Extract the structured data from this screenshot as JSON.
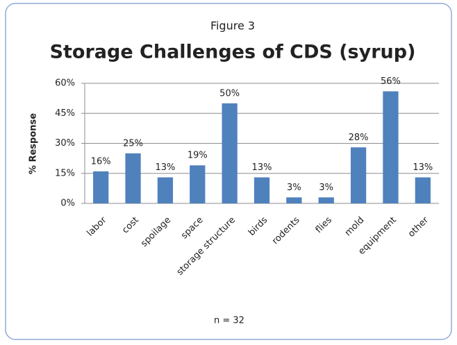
{
  "chart_data": {
    "type": "bar",
    "subtitle": "Figure 3",
    "title": "Storage Challenges of CDS (syrup)",
    "y_label": "% Response",
    "annotation": "n = 32",
    "categories": [
      "labor",
      "cost",
      "spoilage",
      "space",
      "storage structure",
      "birds",
      "rodents",
      "flies",
      "mold",
      "equipment",
      "other"
    ],
    "values": [
      16,
      25,
      13,
      19,
      50,
      13,
      3,
      3,
      28,
      56,
      13
    ],
    "value_labels": [
      "16%",
      "25%",
      "13%",
      "19%",
      "50%",
      "13%",
      "3%",
      "3%",
      "28%",
      "56%",
      "13%"
    ],
    "color": "#4f81bd",
    "ylim": [
      0,
      60
    ],
    "yticks": [
      {
        "value": 0,
        "label": "0%"
      },
      {
        "value": 15,
        "label": "15%"
      },
      {
        "value": 30,
        "label": "30%"
      },
      {
        "value": 45,
        "label": "45%"
      },
      {
        "value": 60,
        "label": "60%"
      }
    ],
    "grid": true
  }
}
